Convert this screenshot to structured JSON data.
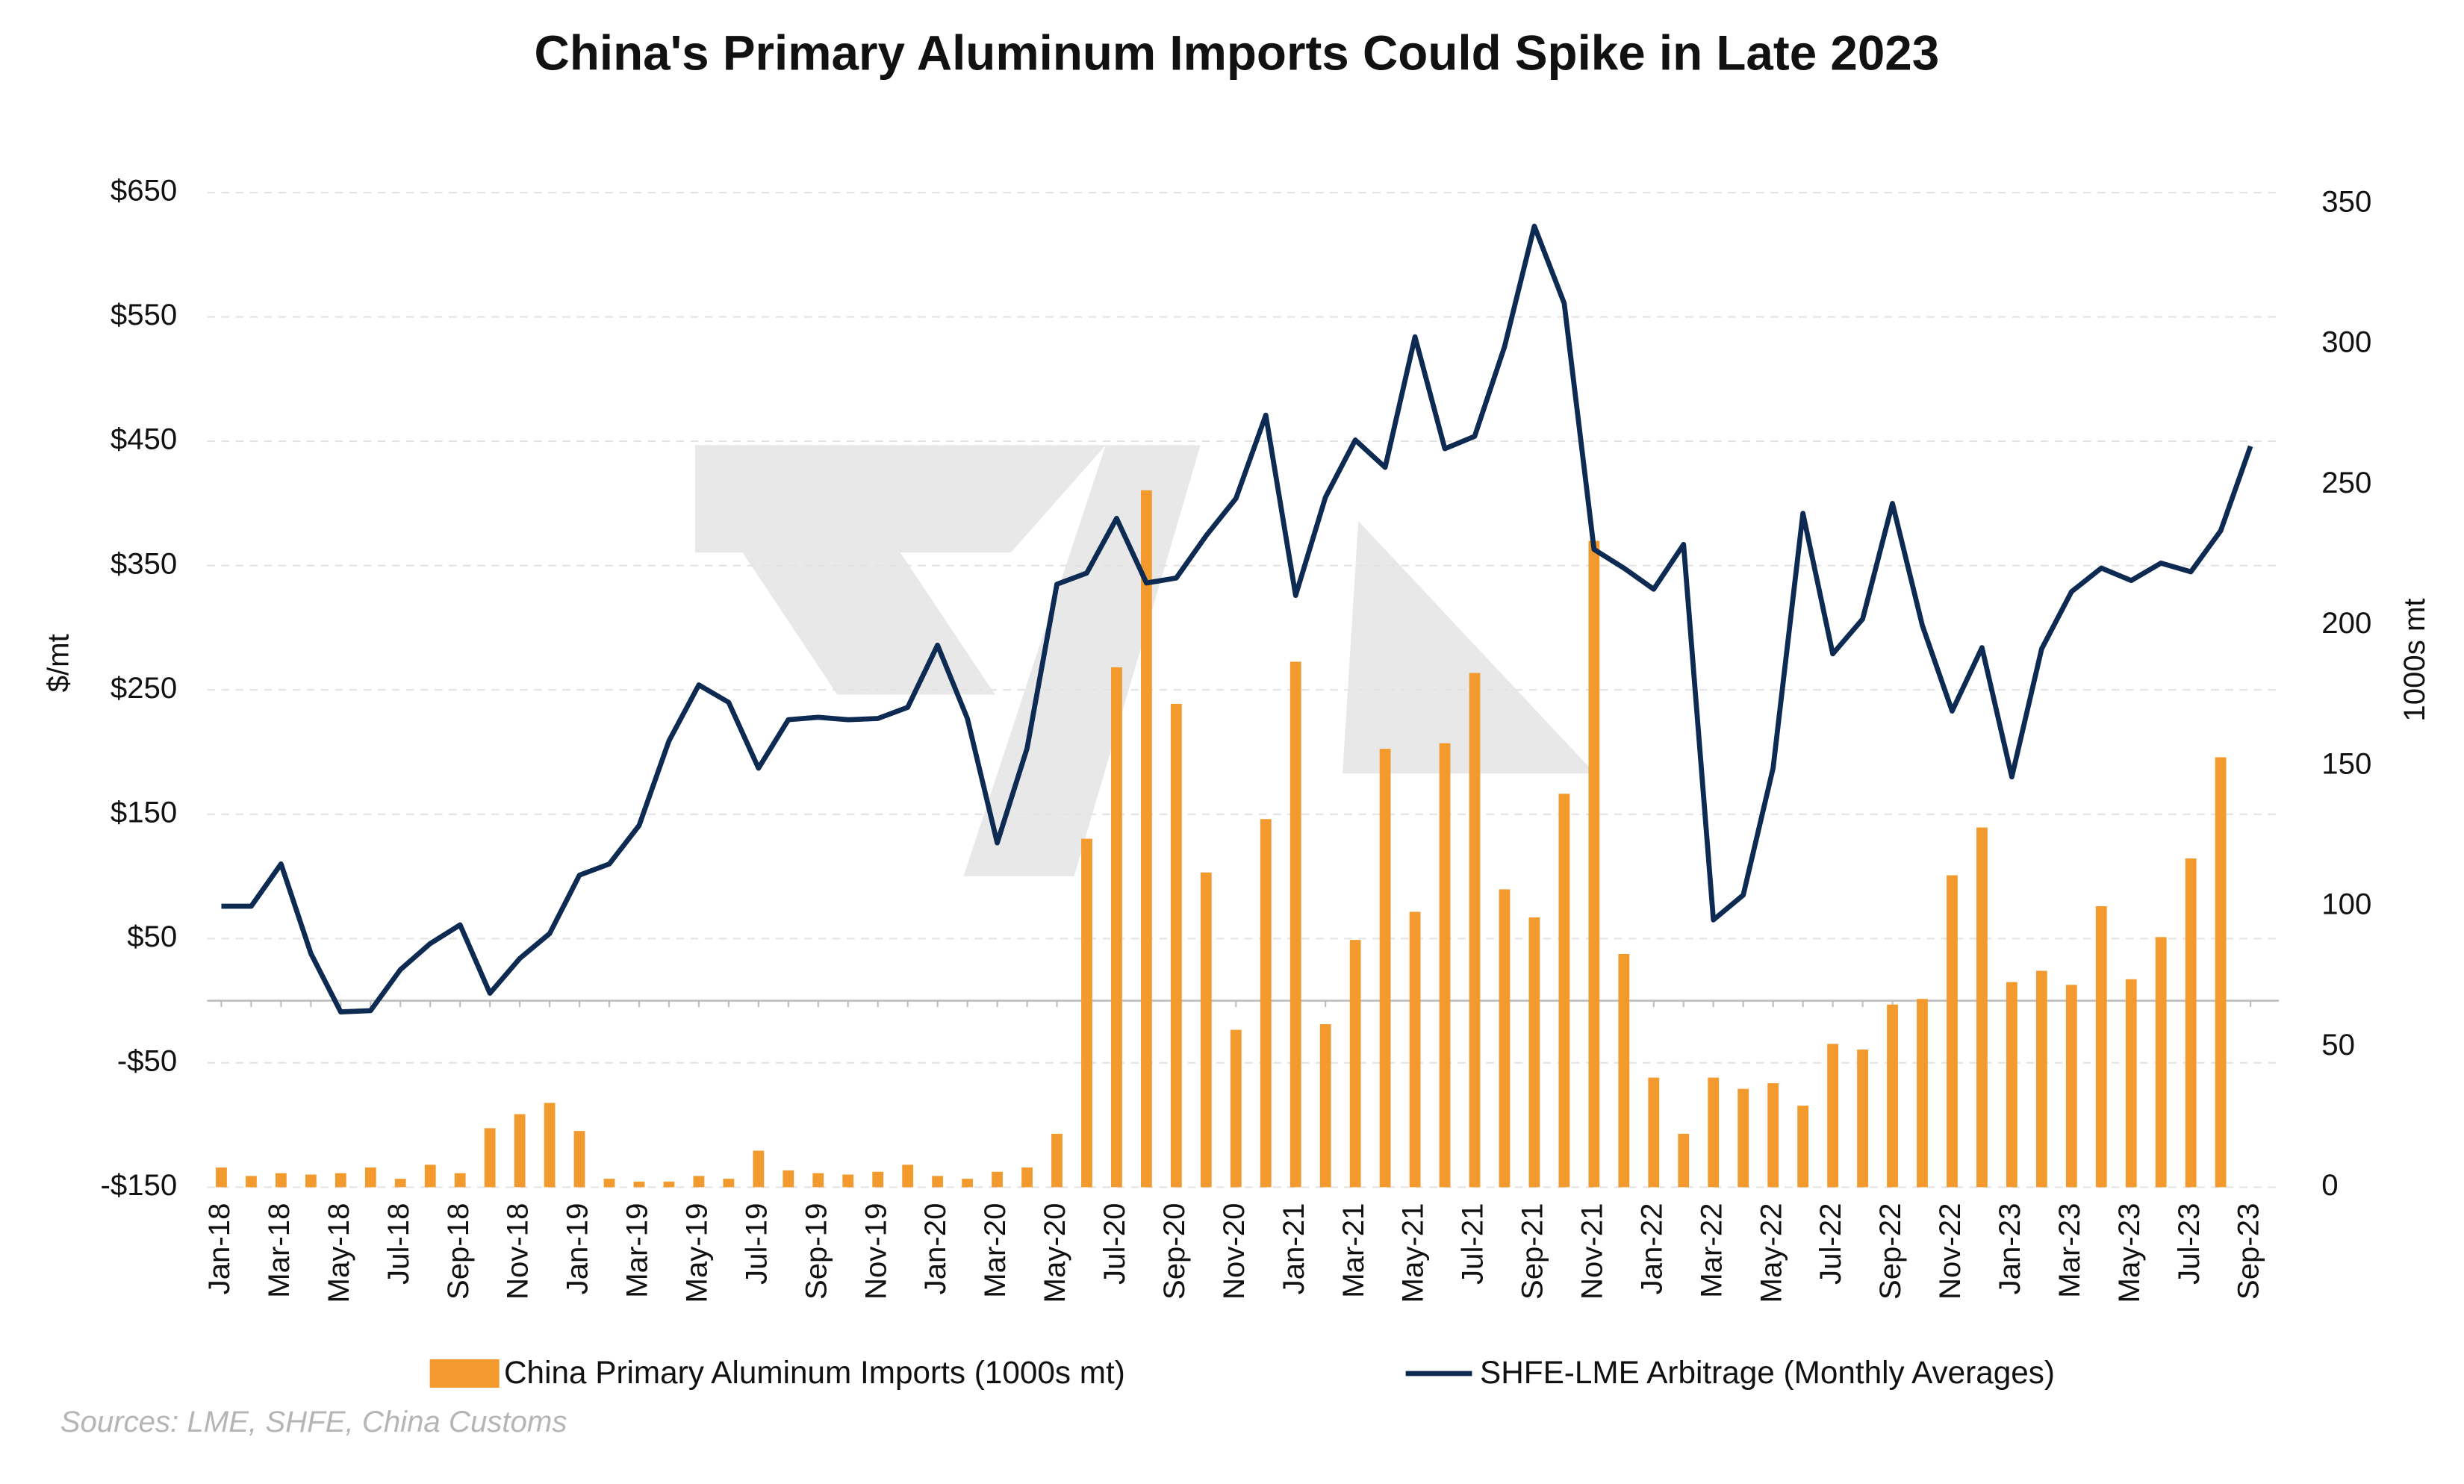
{
  "chart_data": {
    "type": "combo",
    "title": "China's Primary Aluminum Imports Could Spike in Late 2023",
    "ylabel": "$/mt",
    "y2label": "1000s mt",
    "source": "Sources: LME, SHFE, China Customs",
    "categories": [
      "Jan-18",
      null,
      "Mar-18",
      null,
      "May-18",
      null,
      "Jul-18",
      null,
      "Sep-18",
      null,
      "Nov-18",
      null,
      "Jan-19",
      null,
      "Mar-19",
      null,
      "May-19",
      null,
      "Jul-19",
      null,
      "Sep-19",
      null,
      "Nov-19",
      null,
      "Jan-20",
      null,
      "Mar-20",
      null,
      "May-20",
      null,
      "Jul-20",
      null,
      "Sep-20",
      null,
      "Nov-20",
      null,
      "Jan-21",
      null,
      "Mar-21",
      null,
      "May-21",
      null,
      "Jul-21",
      null,
      "Sep-21",
      null,
      "Nov-21",
      null,
      "Jan-22",
      null,
      "Mar-22",
      null,
      "May-22",
      null,
      "Jul-22",
      null,
      "Sep-22",
      null,
      "Nov-22",
      null,
      "Jan-23",
      null,
      "Mar-23",
      null,
      "May-23",
      null,
      "Jul-23",
      null,
      "Sep-23"
    ],
    "series": [
      {
        "name": "China Primary Aluminum Imports (1000s mt)",
        "type": "bar",
        "axis": "y2",
        "color": "#f39a2e",
        "values": [
          7,
          4,
          5,
          4.5,
          5,
          7,
          3,
          8,
          5,
          21,
          26,
          30,
          20,
          3,
          2,
          2,
          4,
          3,
          13,
          6,
          5,
          4.5,
          5.5,
          8,
          4,
          3,
          5.5,
          7,
          19,
          124,
          185,
          248,
          172,
          112,
          56,
          131,
          187,
          58,
          88,
          156,
          98,
          158,
          183,
          106,
          96,
          140,
          230,
          83,
          39,
          19,
          39,
          35,
          37,
          29,
          51,
          49,
          65,
          67,
          111,
          128,
          73,
          77,
          72,
          100,
          74,
          89,
          117,
          153,
          null
        ]
      },
      {
        "name": "SHFE-LME Arbitrage (Monthly Averages)",
        "type": "line",
        "color": "#0d2b52",
        "values": [
          76,
          76,
          110,
          38,
          -9,
          -8,
          25,
          46,
          61,
          6,
          34,
          54,
          101,
          110,
          141,
          209,
          254,
          240,
          187,
          226,
          228,
          226,
          227,
          236,
          286,
          227,
          127,
          203,
          335,
          344,
          388,
          336,
          340,
          374,
          404,
          471,
          326,
          405,
          451,
          429,
          534,
          444,
          454,
          526,
          623,
          561,
          363,
          348,
          331,
          367,
          65,
          85,
          187,
          392,
          279,
          307,
          400,
          302,
          233,
          284,
          180,
          283,
          329,
          348,
          338,
          352,
          345,
          378,
          446
        ]
      }
    ],
    "ylim": [
      -150,
      650
    ],
    "yticks": [
      {
        "value": -150,
        "label": "-$150"
      },
      {
        "value": -50,
        "label": "-$50"
      },
      {
        "value": 50,
        "label": "$50"
      },
      {
        "value": 150,
        "label": "$150"
      },
      {
        "value": 250,
        "label": "$250"
      },
      {
        "value": 350,
        "label": "$350"
      },
      {
        "value": 450,
        "label": "$450"
      },
      {
        "value": 550,
        "label": "$550"
      },
      {
        "value": 650,
        "label": "$650"
      }
    ],
    "y2lim": [
      0,
      350
    ],
    "y2ticks": [
      0,
      50,
      100,
      150,
      200,
      250,
      300,
      350
    ],
    "grid": true
  }
}
